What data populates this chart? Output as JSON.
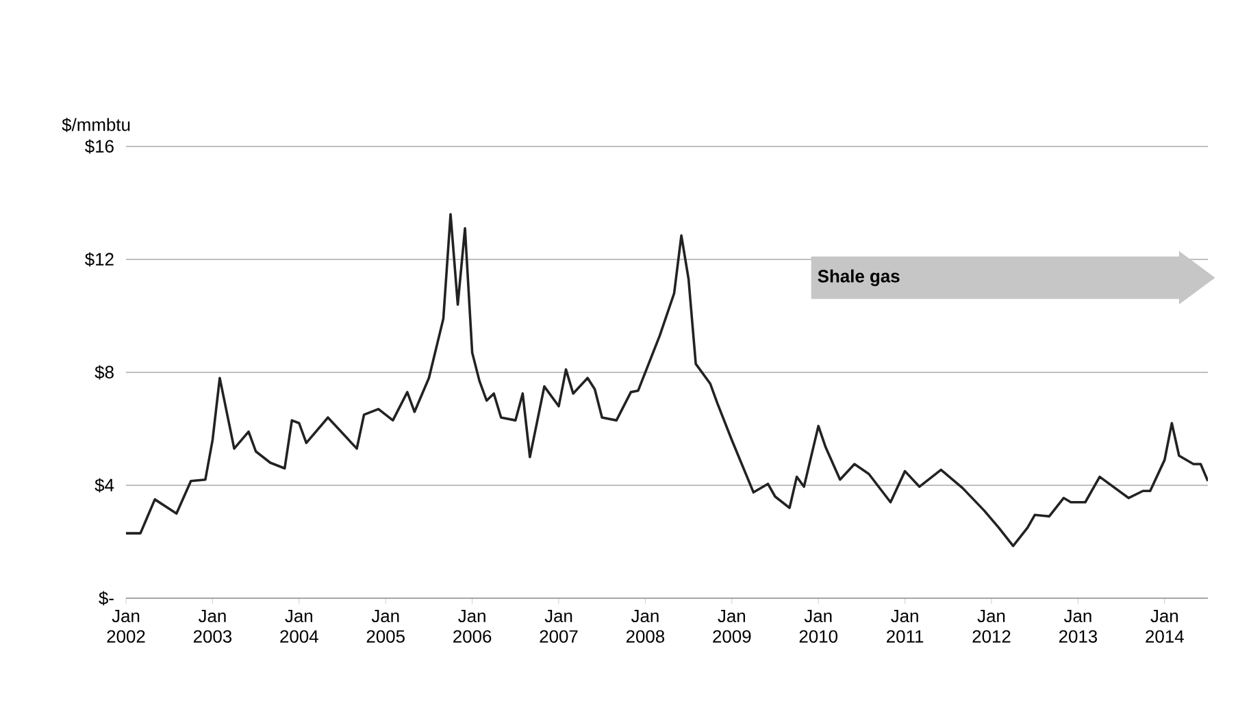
{
  "chart_data": {
    "type": "line",
    "ylabel": "$/mmbtu",
    "annotations": [
      "Shale gas"
    ],
    "x": [
      "2002-01",
      "2002-03",
      "2002-05",
      "2002-08",
      "2002-10",
      "2002-12",
      "2003-01",
      "2003-02",
      "2003-04",
      "2003-06",
      "2003-07",
      "2003-09",
      "2003-11",
      "2003-12",
      "2004-01",
      "2004-02",
      "2004-05",
      "2004-09",
      "2004-10",
      "2004-12",
      "2005-02",
      "2005-04",
      "2005-05",
      "2005-07",
      "2005-09",
      "2005-10",
      "2005-11",
      "2005-12",
      "2006-01",
      "2006-02",
      "2006-03",
      "2006-04",
      "2006-05",
      "2006-07",
      "2006-08",
      "2006-09",
      "2006-11",
      "2007-01",
      "2007-02",
      "2007-03",
      "2007-05",
      "2007-06",
      "2007-07",
      "2007-09",
      "2007-11",
      "2007-12",
      "2008-03",
      "2008-05",
      "2008-06",
      "2008-07",
      "2008-08",
      "2008-10",
      "2008-11",
      "2009-01",
      "2009-04",
      "2009-06",
      "2009-07",
      "2009-09",
      "2009-10",
      "2009-11",
      "2010-01",
      "2010-02",
      "2010-04",
      "2010-06",
      "2010-08",
      "2010-11",
      "2011-01",
      "2011-03",
      "2011-06",
      "2011-09",
      "2011-12",
      "2012-02",
      "2012-04",
      "2012-06",
      "2012-07",
      "2012-09",
      "2012-11",
      "2012-12",
      "2013-02",
      "2013-04",
      "2013-08",
      "2013-10",
      "2013-11",
      "2014-01",
      "2014-02",
      "2014-03",
      "2014-05",
      "2014-06",
      "2014-07"
    ],
    "series": [
      {
        "color": "#222222",
        "values": [
          2.3,
          2.3,
          3.5,
          3.0,
          4.15,
          4.2,
          5.6,
          7.8,
          5.3,
          5.9,
          5.2,
          4.8,
          4.6,
          6.3,
          6.2,
          5.5,
          6.4,
          5.3,
          6.5,
          6.7,
          6.3,
          7.3,
          6.6,
          7.8,
          9.9,
          13.6,
          10.4,
          13.1,
          8.7,
          7.7,
          7.0,
          7.25,
          6.4,
          6.3,
          7.25,
          5.0,
          7.5,
          6.8,
          8.1,
          7.25,
          7.8,
          7.4,
          6.4,
          6.3,
          7.3,
          7.35,
          9.3,
          10.8,
          12.85,
          11.3,
          8.3,
          7.6,
          6.9,
          5.6,
          3.75,
          4.05,
          3.6,
          3.2,
          4.3,
          3.95,
          6.1,
          5.35,
          4.2,
          4.75,
          4.4,
          3.4,
          4.5,
          3.95,
          4.55,
          3.9,
          3.1,
          2.5,
          1.85,
          2.5,
          2.95,
          2.9,
          3.55,
          3.4,
          3.4,
          4.3,
          3.55,
          3.8,
          3.8,
          4.9,
          6.2,
          5.05,
          4.75,
          4.75,
          4.15
        ]
      }
    ],
    "xlim": [
      "2002-01",
      "2014-07"
    ],
    "xticks": [
      {
        "value": "2002-01",
        "label": "Jan 2002"
      },
      {
        "value": "2003-01",
        "label": "Jan 2003"
      },
      {
        "value": "2004-01",
        "label": "Jan 2004"
      },
      {
        "value": "2005-01",
        "label": "Jan 2005"
      },
      {
        "value": "2006-01",
        "label": "Jan 2006"
      },
      {
        "value": "2007-01",
        "label": "Jan 2007"
      },
      {
        "value": "2008-01",
        "label": "Jan 2008"
      },
      {
        "value": "2009-01",
        "label": "Jan 2009"
      },
      {
        "value": "2010-01",
        "label": "Jan 2010"
      },
      {
        "value": "2011-01",
        "label": "Jan 2011"
      },
      {
        "value": "2012-01",
        "label": "Jan 2012"
      },
      {
        "value": "2013-01",
        "label": "Jan 2013"
      },
      {
        "value": "2014-01",
        "label": "Jan 2014"
      }
    ],
    "ylim": [
      0,
      16
    ],
    "yticks": [
      {
        "value": 0,
        "label": "$-"
      },
      {
        "value": 4,
        "label": "$4"
      },
      {
        "value": 8,
        "label": "$8"
      },
      {
        "value": 12,
        "label": "$12"
      },
      {
        "value": 16,
        "label": "$16"
      }
    ],
    "grid": "y",
    "marker": "none",
    "line_style": "solid"
  }
}
